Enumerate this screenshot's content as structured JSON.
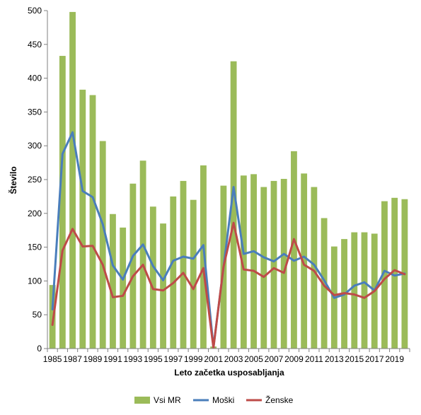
{
  "chart_data": {
    "type": "bar",
    "xlabel": "Leto začetka usposabljanja",
    "ylabel": "Število",
    "ylim": [
      0,
      500
    ],
    "yticks": [
      0,
      50,
      100,
      150,
      200,
      250,
      300,
      350,
      400,
      450,
      500
    ],
    "grid": false,
    "legend_position": "bottom",
    "x": [
      1985,
      1986,
      1987,
      1988,
      1989,
      1990,
      1991,
      1992,
      1993,
      1994,
      1995,
      1996,
      1997,
      1998,
      1999,
      2000,
      2001,
      2002,
      2003,
      2004,
      2005,
      2006,
      2007,
      2008,
      2009,
      2010,
      2011,
      2012,
      2013,
      2014,
      2015,
      2016,
      2017,
      2018,
      2019,
      2020
    ],
    "x_tick_labels": [
      "1985",
      "1987",
      "1989",
      "1991",
      "1993",
      "1995",
      "1997",
      "1999",
      "2001",
      "2003",
      "2005",
      "2007",
      "2009",
      "2011",
      "2013",
      "2015",
      "2017",
      "2019"
    ],
    "series": [
      {
        "name": "Vsi MR",
        "type": "bar",
        "color": "#9bbb59",
        "values": [
          94,
          433,
          498,
          383,
          375,
          307,
          199,
          179,
          244,
          278,
          210,
          185,
          225,
          248,
          220,
          271,
          3,
          241,
          425,
          256,
          258,
          239,
          248,
          251,
          292,
          259,
          239,
          193,
          151,
          162,
          172,
          172,
          170,
          218,
          223,
          221
        ]
      },
      {
        "name": "Moški",
        "type": "line",
        "color": "#4a7ebb",
        "values": [
          58,
          288,
          320,
          233,
          224,
          184,
          123,
          102,
          137,
          154,
          122,
          101,
          130,
          136,
          133,
          153,
          2,
          120,
          239,
          140,
          144,
          135,
          129,
          140,
          130,
          136,
          124,
          101,
          75,
          80,
          93,
          98,
          86,
          115,
          108,
          111
        ]
      },
      {
        "name": "Ženske",
        "type": "line",
        "color": "#be4b48",
        "values": [
          35,
          145,
          177,
          151,
          152,
          124,
          76,
          78,
          107,
          124,
          88,
          86,
          97,
          112,
          88,
          119,
          1,
          121,
          186,
          117,
          115,
          106,
          119,
          112,
          162,
          124,
          115,
          93,
          79,
          82,
          80,
          75,
          85,
          103,
          116,
          110
        ]
      }
    ]
  }
}
